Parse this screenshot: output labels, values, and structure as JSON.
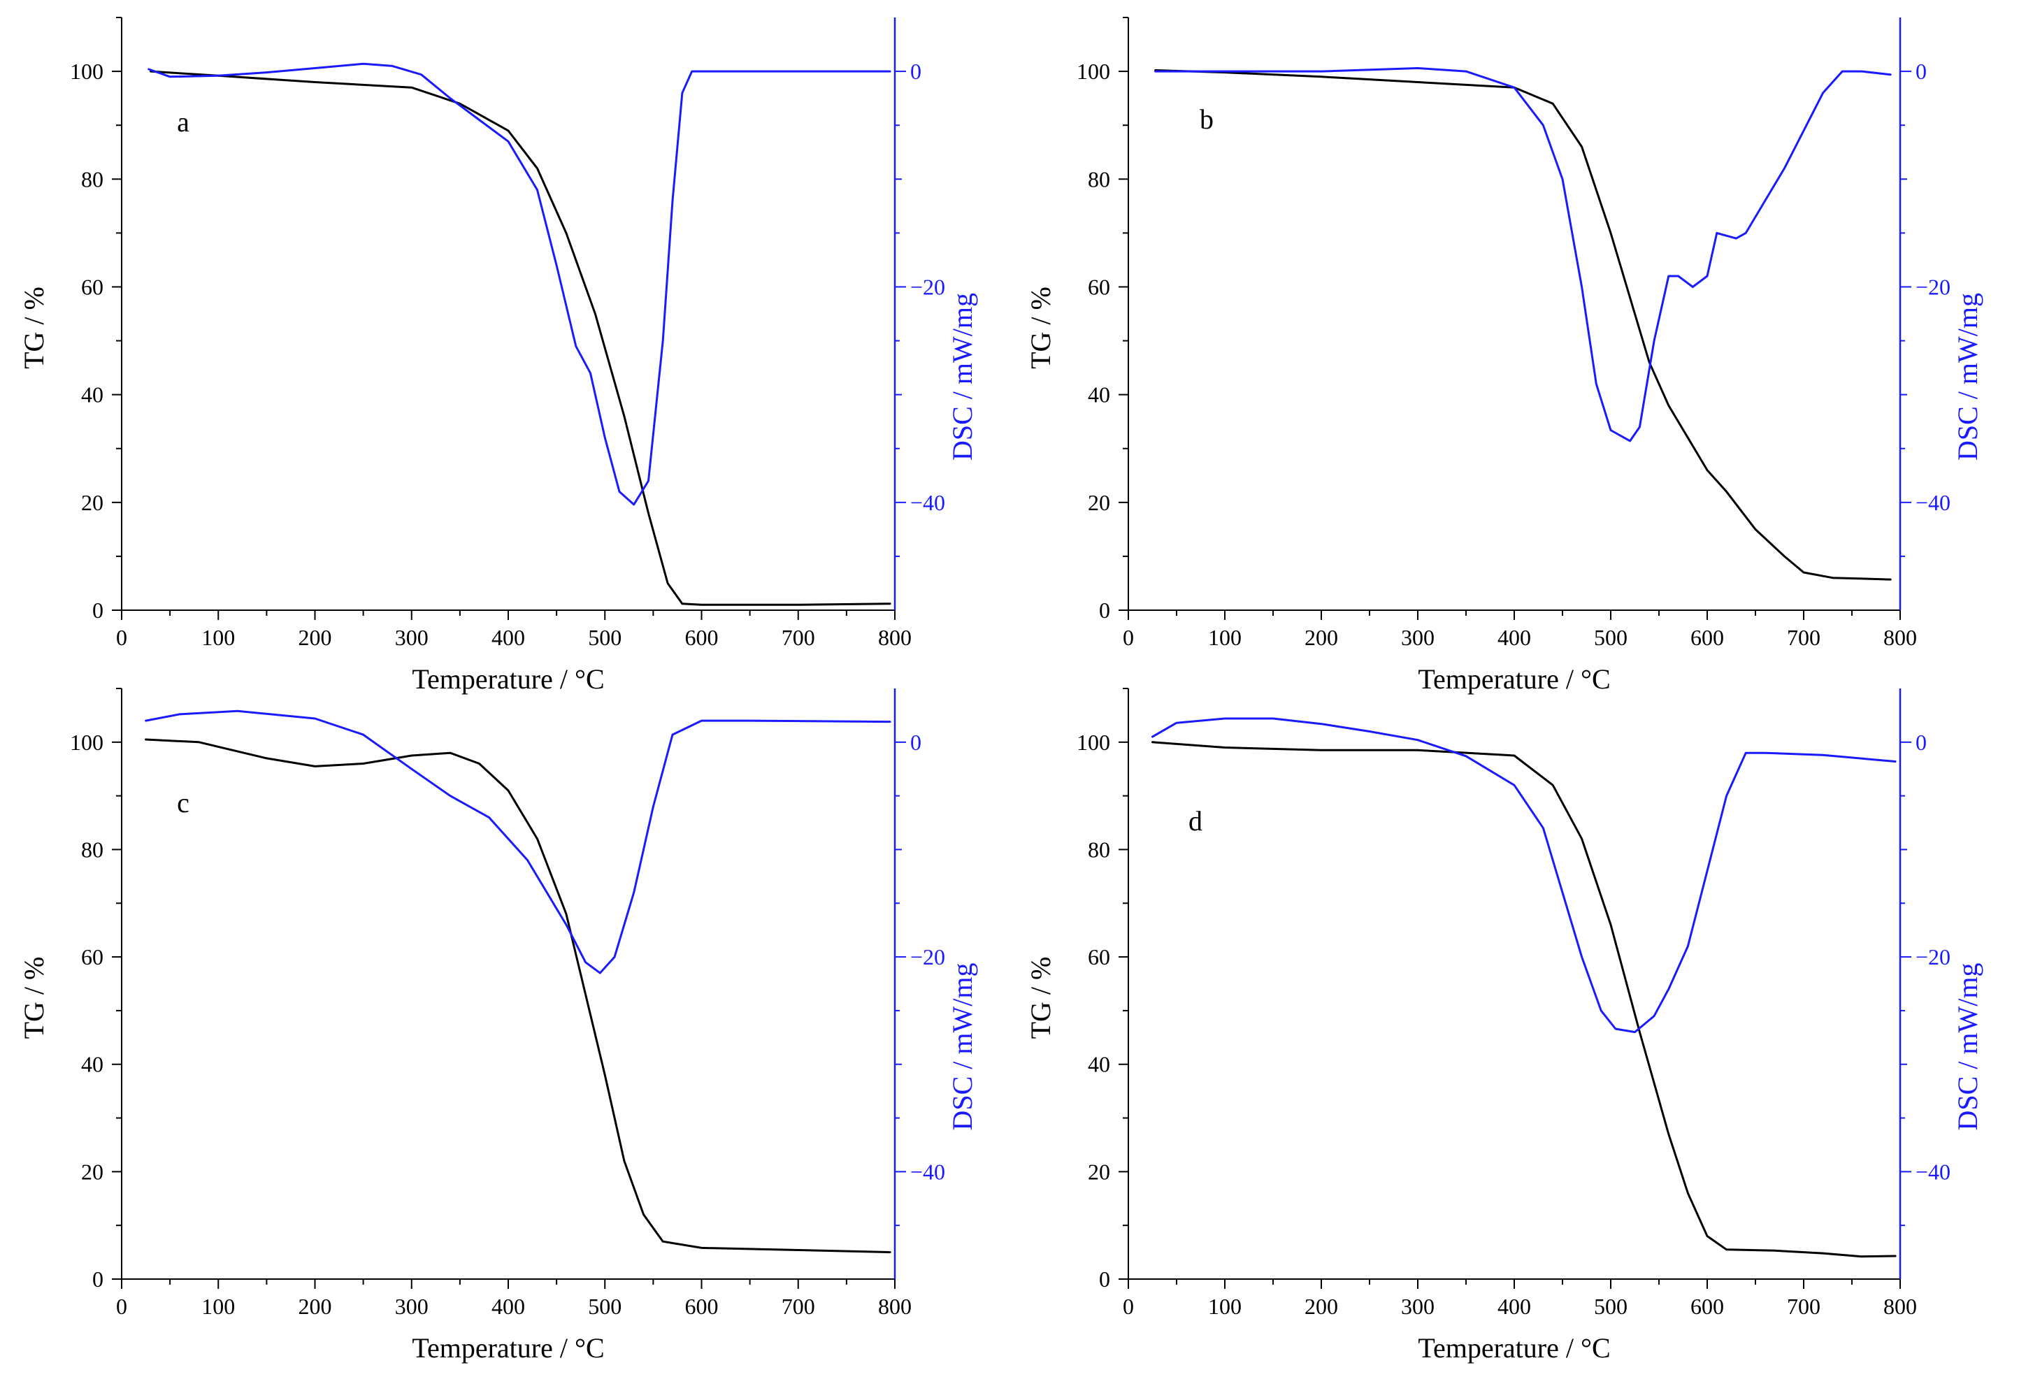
{
  "figure": {
    "colors": {
      "tg": "#000000",
      "dsc": "#1a1aff",
      "axis": "#000000"
    }
  },
  "chart_data": [
    {
      "type": "line",
      "panel_label": "a",
      "xlabel": "Temperature / °C",
      "ylabel": "TG / %",
      "y2label": "DSC / mW/mg",
      "xlim": [
        0,
        800
      ],
      "ylim": [
        0,
        110
      ],
      "y2lim": [
        -50,
        5
      ],
      "xticks": [
        0,
        100,
        200,
        300,
        400,
        500,
        600,
        700,
        800
      ],
      "yticks": [
        0,
        20,
        40,
        60,
        80,
        100
      ],
      "y2ticks": [
        0,
        -20,
        -40
      ],
      "series": [
        {
          "name": "TG",
          "axis": "left",
          "points": [
            [
              30,
              100
            ],
            [
              100,
              99.2
            ],
            [
              200,
              98
            ],
            [
              300,
              97
            ],
            [
              350,
              94
            ],
            [
              400,
              89
            ],
            [
              430,
              82
            ],
            [
              460,
              70
            ],
            [
              490,
              55
            ],
            [
              520,
              36
            ],
            [
              545,
              18
            ],
            [
              565,
              5
            ],
            [
              580,
              1.2
            ],
            [
              600,
              1
            ],
            [
              700,
              1
            ],
            [
              795,
              1.2
            ]
          ]
        },
        {
          "name": "DSC",
          "axis": "right",
          "points": [
            [
              28,
              0.2
            ],
            [
              50,
              -0.5
            ],
            [
              100,
              -0.4
            ],
            [
              150,
              -0.1
            ],
            [
              200,
              0.3
            ],
            [
              250,
              0.7
            ],
            [
              280,
              0.5
            ],
            [
              310,
              -0.3
            ],
            [
              340,
              -2.5
            ],
            [
              370,
              -4.5
            ],
            [
              400,
              -6.5
            ],
            [
              430,
              -11
            ],
            [
              450,
              -18
            ],
            [
              470,
              -25.5
            ],
            [
              485,
              -28
            ],
            [
              500,
              -34
            ],
            [
              515,
              -39
            ],
            [
              530,
              -40.2
            ],
            [
              545,
              -38
            ],
            [
              560,
              -25
            ],
            [
              570,
              -12
            ],
            [
              580,
              -2
            ],
            [
              590,
              0
            ],
            [
              650,
              0
            ],
            [
              700,
              0
            ],
            [
              795,
              0
            ]
          ]
        }
      ]
    },
    {
      "type": "line",
      "panel_label": "b",
      "xlabel": "Temperature / °C",
      "ylabel": "TG / %",
      "y2label": "DSC / mW/mg",
      "xlim": [
        0,
        800
      ],
      "ylim": [
        0,
        110
      ],
      "y2lim": [
        -50,
        5
      ],
      "xticks": [
        0,
        100,
        200,
        300,
        400,
        500,
        600,
        700,
        800
      ],
      "yticks": [
        0,
        20,
        40,
        60,
        80,
        100
      ],
      "y2ticks": [
        0,
        -20,
        -40
      ],
      "series": [
        {
          "name": "TG",
          "axis": "left",
          "points": [
            [
              28,
              100.2
            ],
            [
              100,
              99.8
            ],
            [
              200,
              99
            ],
            [
              300,
              98
            ],
            [
              400,
              97
            ],
            [
              440,
              94
            ],
            [
              470,
              86
            ],
            [
              500,
              70
            ],
            [
              520,
              58
            ],
            [
              540,
              46
            ],
            [
              560,
              38
            ],
            [
              580,
              32
            ],
            [
              600,
              26
            ],
            [
              620,
              22
            ],
            [
              650,
              15
            ],
            [
              680,
              10
            ],
            [
              700,
              7
            ],
            [
              730,
              6
            ],
            [
              790,
              5.7
            ]
          ]
        },
        {
          "name": "DSC",
          "axis": "right",
          "points": [
            [
              28,
              0
            ],
            [
              100,
              0
            ],
            [
              200,
              0
            ],
            [
              300,
              0.3
            ],
            [
              350,
              0
            ],
            [
              400,
              -1.5
            ],
            [
              430,
              -5
            ],
            [
              450,
              -10
            ],
            [
              470,
              -20
            ],
            [
              485,
              -29
            ],
            [
              500,
              -33.3
            ],
            [
              520,
              -34.3
            ],
            [
              530,
              -33
            ],
            [
              545,
              -25
            ],
            [
              560,
              -19
            ],
            [
              570,
              -19
            ],
            [
              585,
              -20
            ],
            [
              600,
              -19
            ],
            [
              610,
              -15
            ],
            [
              630,
              -15.5
            ],
            [
              640,
              -15
            ],
            [
              660,
              -12
            ],
            [
              680,
              -9
            ],
            [
              700,
              -5.5
            ],
            [
              720,
              -2
            ],
            [
              740,
              0
            ],
            [
              760,
              0
            ],
            [
              790,
              -0.3
            ]
          ]
        }
      ]
    },
    {
      "type": "line",
      "panel_label": "c",
      "xlabel": "Temperature / °C",
      "ylabel": "TG / %",
      "y2label": "DSC / mW/mg",
      "xlim": [
        0,
        800
      ],
      "ylim": [
        0,
        110
      ],
      "y2lim": [
        -50,
        5
      ],
      "xticks": [
        0,
        100,
        200,
        300,
        400,
        500,
        600,
        700,
        800
      ],
      "yticks": [
        0,
        20,
        40,
        60,
        80,
        100
      ],
      "y2ticks": [
        0,
        -20,
        -40
      ],
      "series": [
        {
          "name": "TG",
          "axis": "left",
          "points": [
            [
              25,
              100.5
            ],
            [
              80,
              100
            ],
            [
              150,
              97
            ],
            [
              200,
              95.5
            ],
            [
              250,
              96
            ],
            [
              300,
              97.5
            ],
            [
              340,
              98
            ],
            [
              370,
              96
            ],
            [
              400,
              91
            ],
            [
              430,
              82
            ],
            [
              460,
              68
            ],
            [
              480,
              53
            ],
            [
              500,
              38
            ],
            [
              520,
              22
            ],
            [
              540,
              12
            ],
            [
              560,
              7
            ],
            [
              600,
              5.8
            ],
            [
              700,
              5.4
            ],
            [
              795,
              5
            ]
          ]
        },
        {
          "name": "DSC",
          "axis": "right",
          "points": [
            [
              25,
              2
            ],
            [
              60,
              2.6
            ],
            [
              120,
              2.9
            ],
            [
              200,
              2.2
            ],
            [
              250,
              0.7
            ],
            [
              300,
              -2.5
            ],
            [
              340,
              -5
            ],
            [
              380,
              -7
            ],
            [
              420,
              -11
            ],
            [
              460,
              -17
            ],
            [
              480,
              -20.5
            ],
            [
              495,
              -21.5
            ],
            [
              510,
              -20
            ],
            [
              530,
              -14
            ],
            [
              550,
              -6
            ],
            [
              570,
              0.7
            ],
            [
              600,
              2
            ],
            [
              650,
              2
            ],
            [
              795,
              1.9
            ]
          ]
        }
      ]
    },
    {
      "type": "line",
      "panel_label": "d",
      "xlabel": "Temperature / °C",
      "ylabel": "TG / %",
      "y2label": "DSC / mW/mg",
      "xlim": [
        0,
        800
      ],
      "ylim": [
        0,
        110
      ],
      "y2lim": [
        -50,
        5
      ],
      "xticks": [
        0,
        100,
        200,
        300,
        400,
        500,
        600,
        700,
        800
      ],
      "yticks": [
        0,
        20,
        40,
        60,
        80,
        100
      ],
      "y2ticks": [
        0,
        -20,
        -40
      ],
      "series": [
        {
          "name": "TG",
          "axis": "left",
          "points": [
            [
              25,
              100
            ],
            [
              100,
              99
            ],
            [
              200,
              98.5
            ],
            [
              300,
              98.5
            ],
            [
              400,
              97.5
            ],
            [
              440,
              92
            ],
            [
              470,
              82
            ],
            [
              500,
              66
            ],
            [
              530,
              46
            ],
            [
              560,
              27
            ],
            [
              580,
              16
            ],
            [
              600,
              8
            ],
            [
              620,
              5.5
            ],
            [
              670,
              5.3
            ],
            [
              720,
              4.8
            ],
            [
              760,
              4.2
            ],
            [
              795,
              4.3
            ]
          ]
        },
        {
          "name": "DSC",
          "axis": "right",
          "points": [
            [
              25,
              0.5
            ],
            [
              50,
              1.8
            ],
            [
              100,
              2.2
            ],
            [
              150,
              2.2
            ],
            [
              200,
              1.7
            ],
            [
              250,
              1
            ],
            [
              300,
              0.2
            ],
            [
              350,
              -1.3
            ],
            [
              400,
              -4
            ],
            [
              430,
              -8
            ],
            [
              450,
              -14
            ],
            [
              470,
              -20
            ],
            [
              490,
              -25
            ],
            [
              505,
              -26.7
            ],
            [
              525,
              -27
            ],
            [
              545,
              -25.5
            ],
            [
              560,
              -23
            ],
            [
              580,
              -19
            ],
            [
              600,
              -12
            ],
            [
              620,
              -5
            ],
            [
              640,
              -1
            ],
            [
              660,
              -1
            ],
            [
              720,
              -1.2
            ],
            [
              795,
              -1.8
            ]
          ]
        }
      ]
    }
  ]
}
